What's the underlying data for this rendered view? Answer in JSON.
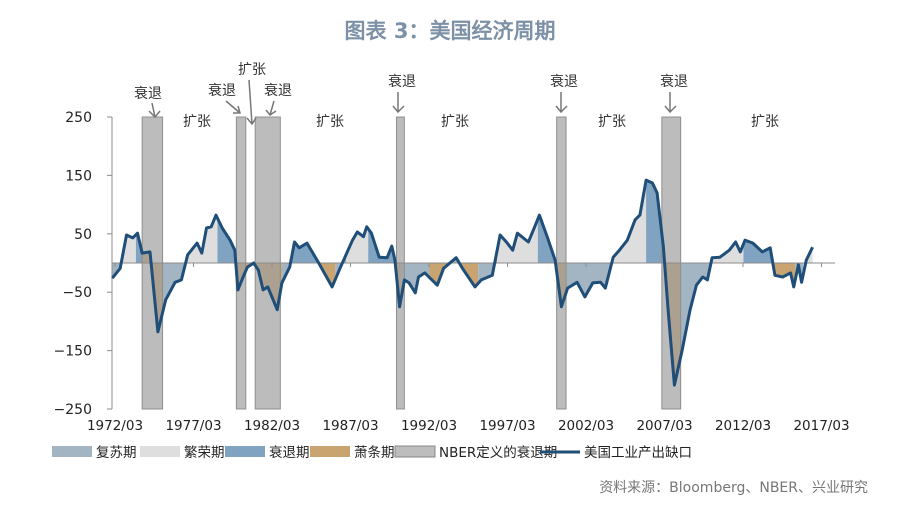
{
  "chart_data": {
    "type": "area",
    "title": "图表 3：美国经济周期",
    "source": "资料来源：Bloomberg、NBER、兴业研究",
    "ylim": [
      -250,
      250
    ],
    "yticks": [
      250,
      150,
      50,
      -50,
      -150,
      -250
    ],
    "ytick_labels": [
      "250",
      "150",
      "50",
      "−50",
      "−150",
      "−250"
    ],
    "xticks": [
      1972.17,
      1977.17,
      1982.17,
      1987.17,
      1992.17,
      1997.17,
      2002.17,
      2007.17,
      2012.17,
      2017.17
    ],
    "xtick_labels": [
      "1972/03",
      "1977/03",
      "1982/03",
      "1987/03",
      "1992/03",
      "1997/03",
      "2002/03",
      "2007/03",
      "2012/03",
      "2017/03"
    ],
    "xlim": [
      1972.0,
      2019.0
    ],
    "series": [
      {
        "name": "美国工业产出缺口",
        "x": [
          1972.0,
          1972.5,
          1972.9,
          1973.3,
          1973.6,
          1973.9,
          1974.4,
          1974.9,
          1975.4,
          1976.0,
          1976.4,
          1976.8,
          1977.4,
          1977.7,
          1978.0,
          1978.3,
          1978.6,
          1979.0,
          1979.5,
          1979.8,
          1980.0,
          1980.3,
          1980.6,
          1981.0,
          1981.3,
          1981.6,
          1981.9,
          1982.5,
          1982.8,
          1983.3,
          1983.6,
          1983.9,
          1984.4,
          1985.1,
          1986.0,
          1986.5,
          1987.3,
          1987.6,
          1988.0,
          1988.2,
          1988.5,
          1989.0,
          1989.5,
          1989.8,
          1990.0,
          1990.3,
          1990.6,
          1990.9,
          1991.3,
          1991.5,
          1991.9,
          1992.7,
          1993.1,
          1993.9,
          1994.3,
          1995.1,
          1995.5,
          1996.2,
          1996.7,
          1997.1,
          1997.5,
          1997.8,
          1998.5,
          1998.9,
          1999.2,
          1999.7,
          2000.2,
          2000.6,
          2001.0,
          2001.6,
          2002.1,
          2002.6,
          2003.1,
          2003.4,
          2003.9,
          2004.3,
          2004.8,
          2005.3,
          2005.6,
          2006.0,
          2006.4,
          2006.7,
          2007.1,
          2007.4,
          2007.8,
          2008.3,
          2008.8,
          2009.2,
          2009.6,
          2009.9,
          2010.2,
          2010.7,
          2011.3,
          2011.7,
          2012.0,
          2012.3,
          2012.8,
          2013.4,
          2013.9,
          2014.2,
          2014.7,
          2015.2,
          2015.4,
          2015.7,
          2015.9,
          2016.2,
          2016.6
        ],
        "values": [
          -26,
          -9,
          48,
          43,
          51,
          17,
          19,
          -118,
          -63,
          -33,
          -29,
          14,
          34,
          17,
          60,
          62,
          82,
          60,
          39,
          22,
          -46,
          -26,
          -7,
          0,
          -12,
          -46,
          -41,
          -80,
          -34,
          -7,
          36,
          26,
          34,
          2,
          -41,
          -9,
          39,
          53,
          45,
          62,
          51,
          10,
          9,
          29,
          5,
          -75,
          -29,
          -34,
          -51,
          -24,
          -17,
          -38,
          -9,
          9,
          -9,
          -41,
          -29,
          -21,
          48,
          36,
          22,
          51,
          36,
          62,
          82,
          45,
          5,
          -75,
          -43,
          -33,
          -58,
          -34,
          -33,
          -43,
          10,
          22,
          39,
          74,
          82,
          142,
          137,
          120,
          27,
          -80,
          -209,
          -149,
          -80,
          -38,
          -24,
          -29,
          9,
          10,
          22,
          36,
          19,
          39,
          34,
          19,
          26,
          -21,
          -24,
          -17,
          -41,
          -3,
          -33,
          5,
          27
        ]
      }
    ],
    "phases": [
      [
        1972.0,
        1972.5,
        "recovery"
      ],
      [
        1972.5,
        1973.5,
        "prosperity"
      ],
      [
        1973.5,
        1973.9,
        "recession"
      ],
      [
        1973.9,
        1975.2,
        "depression"
      ],
      [
        1975.2,
        1976.8,
        "recovery"
      ],
      [
        1976.8,
        1978.7,
        "prosperity"
      ],
      [
        1978.7,
        1979.8,
        "recession"
      ],
      [
        1979.8,
        1982.8,
        "depression"
      ],
      [
        1982.8,
        1983.4,
        "recovery"
      ],
      [
        1983.4,
        1985.1,
        "recession"
      ],
      [
        1985.1,
        1986.2,
        "depression"
      ],
      [
        1986.2,
        1986.9,
        "recovery"
      ],
      [
        1986.9,
        1988.3,
        "prosperity"
      ],
      [
        1988.3,
        1990.0,
        "recession"
      ],
      [
        1990.0,
        1990.4,
        "depression"
      ],
      [
        1990.4,
        1992.2,
        "recovery"
      ],
      [
        1992.2,
        1993.7,
        "depression"
      ],
      [
        1993.7,
        1994.2,
        "recovery"
      ],
      [
        1994.2,
        1995.3,
        "depression"
      ],
      [
        1995.3,
        1996.5,
        "recovery"
      ],
      [
        1996.5,
        1999.1,
        "prosperity"
      ],
      [
        1999.1,
        2000.1,
        "recession"
      ],
      [
        2000.1,
        2000.9,
        "depression"
      ],
      [
        2000.9,
        2003.8,
        "recovery"
      ],
      [
        2003.8,
        2006.0,
        "prosperity"
      ],
      [
        2006.0,
        2007.0,
        "recession"
      ],
      [
        2007.0,
        2008.2,
        "depression"
      ],
      [
        2008.2,
        2010.1,
        "recovery"
      ],
      [
        2010.1,
        2012.2,
        "prosperity"
      ],
      [
        2012.2,
        2014.0,
        "recession"
      ],
      [
        2014.0,
        2015.5,
        "depression"
      ],
      [
        2015.5,
        2016.0,
        "recovery"
      ],
      [
        2016.0,
        2016.6,
        "prosperity"
      ]
    ],
    "nber_recessions": [
      [
        1973.9,
        1975.2
      ],
      [
        1979.9,
        1980.5
      ],
      [
        1981.1,
        1982.7
      ],
      [
        1990.1,
        1990.6
      ],
      [
        2000.3,
        2000.9
      ],
      [
        2007.0,
        2008.2
      ]
    ],
    "legend": [
      {
        "key": "recovery",
        "label": "复苏期",
        "color": "#a3b5c3"
      },
      {
        "key": "prosperity",
        "label": "繁荣期",
        "color": "#dedede"
      },
      {
        "key": "recession",
        "label": "衰退期",
        "color": "#7fa3c1"
      },
      {
        "key": "depression",
        "label": "萧条期",
        "color": "#c9a470"
      },
      {
        "key": "nber",
        "label": "NBER定义的衰退期",
        "color": "#bdbdbd"
      },
      {
        "key": "line",
        "label": "美国工业产出缺口",
        "color": "#1f4e79"
      }
    ],
    "legend_position": "bottom",
    "annotations": {
      "recession": "衰退",
      "expansion": "扩张"
    }
  }
}
